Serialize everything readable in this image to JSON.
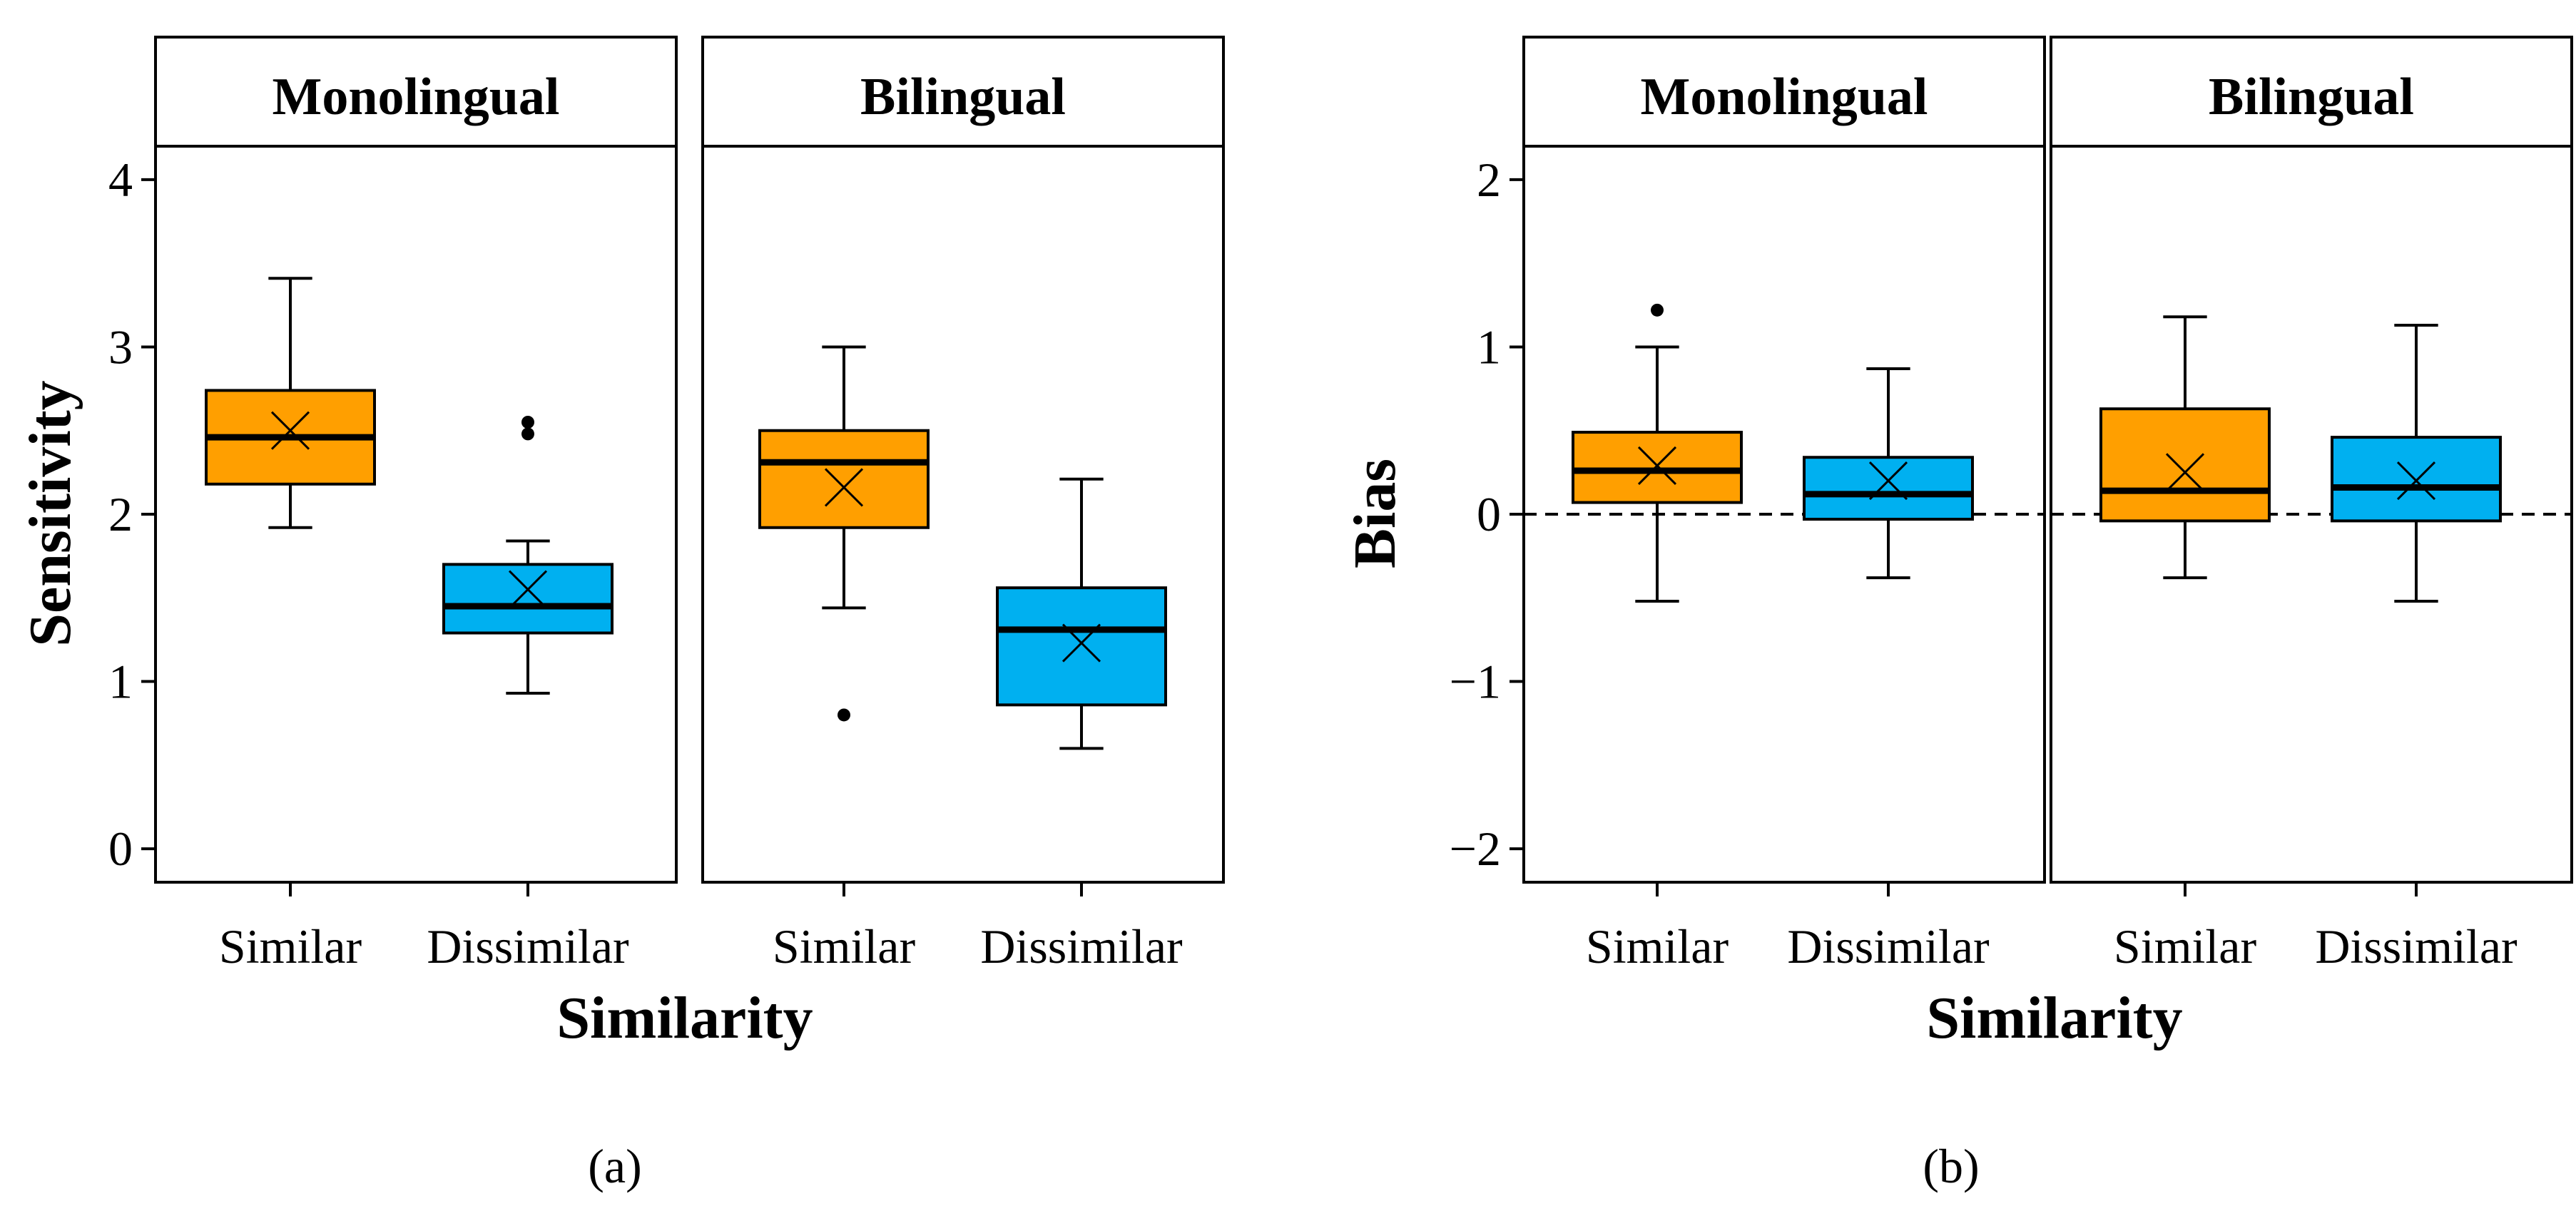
{
  "colors": {
    "similar_fill": "#FF9F00",
    "dissimilar_fill": "#00B0F0",
    "stroke": "#000000"
  },
  "figure": {
    "subfigure_labels": [
      "(a)",
      "(b)"
    ]
  },
  "chart_data": [
    {
      "type": "boxplot",
      "panel_label": "(a)",
      "xlabel": "Similarity",
      "ylabel": "Sensitivity",
      "ylim": [
        -0.2,
        4.2
      ],
      "yticks": [
        0,
        1,
        2,
        3,
        4
      ],
      "dashed_reference_line": null,
      "facets": [
        {
          "title": "Monolingual",
          "categories": [
            "Similar",
            "Dissimilar"
          ],
          "boxes": [
            {
              "category": "Similar",
              "whisker_low": 1.92,
              "q1": 2.18,
              "median": 2.46,
              "q3": 2.74,
              "whisker_high": 3.41,
              "mean": 2.5,
              "outliers": []
            },
            {
              "category": "Dissimilar",
              "whisker_low": 0.93,
              "q1": 1.29,
              "median": 1.45,
              "q3": 1.7,
              "whisker_high": 1.84,
              "mean": 1.55,
              "outliers": [
                2.48,
                2.55
              ]
            }
          ]
        },
        {
          "title": "Bilingual",
          "categories": [
            "Similar",
            "Dissimilar"
          ],
          "boxes": [
            {
              "category": "Similar",
              "whisker_low": 1.44,
              "q1": 1.92,
              "median": 2.31,
              "q3": 2.5,
              "whisker_high": 3.0,
              "mean": 2.16,
              "outliers": [
                0.8
              ]
            },
            {
              "category": "Dissimilar",
              "whisker_low": 0.6,
              "q1": 0.86,
              "median": 1.31,
              "q3": 1.56,
              "whisker_high": 2.21,
              "mean": 1.23,
              "outliers": []
            }
          ]
        }
      ]
    },
    {
      "type": "boxplot",
      "panel_label": "(b)",
      "xlabel": "Similarity",
      "ylabel": "Bias",
      "ylim": [
        -2.2,
        2.2
      ],
      "yticks": [
        -2,
        -1,
        0,
        1,
        2
      ],
      "ytick_labels": [
        "−2",
        "−1",
        "0",
        "1",
        "2"
      ],
      "dashed_reference_line": 0,
      "facets": [
        {
          "title": "Monolingual",
          "categories": [
            "Similar",
            "Dissimilar"
          ],
          "boxes": [
            {
              "category": "Similar",
              "whisker_low": -0.52,
              "q1": 0.07,
              "median": 0.26,
              "q3": 0.49,
              "whisker_high": 1.0,
              "mean": 0.29,
              "outliers": [
                1.22
              ]
            },
            {
              "category": "Dissimilar",
              "whisker_low": -0.38,
              "q1": -0.03,
              "median": 0.12,
              "q3": 0.34,
              "whisker_high": 0.87,
              "mean": 0.2,
              "outliers": []
            }
          ]
        },
        {
          "title": "Bilingual",
          "categories": [
            "Similar",
            "Dissimilar"
          ],
          "boxes": [
            {
              "category": "Similar",
              "whisker_low": -0.38,
              "q1": -0.04,
              "median": 0.14,
              "q3": 0.63,
              "whisker_high": 1.18,
              "mean": 0.25,
              "outliers": []
            },
            {
              "category": "Dissimilar",
              "whisker_low": -0.52,
              "q1": -0.04,
              "median": 0.16,
              "q3": 0.46,
              "whisker_high": 1.13,
              "mean": 0.2,
              "outliers": []
            }
          ]
        }
      ]
    }
  ]
}
